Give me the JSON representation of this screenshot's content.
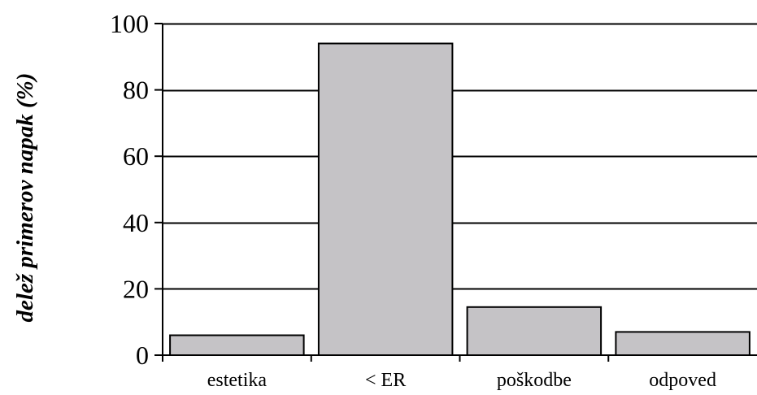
{
  "chart_data": {
    "type": "bar",
    "title": "",
    "xlabel": "",
    "ylabel": "delež primerov napak (%)",
    "categories": [
      "estetika",
      "< ER",
      "poškodbe",
      "odpoved"
    ],
    "series": [
      {
        "values": [
          6,
          94,
          14.5,
          7
        ]
      }
    ],
    "ylim": [
      0,
      100
    ],
    "yticks": [
      0,
      20,
      40,
      60,
      80,
      100
    ],
    "grid": true,
    "legend": "none",
    "colors": {
      "bar_fill": "#c5c3c6",
      "bar_stroke": "#000000",
      "grid": "#000000",
      "axis": "#000000"
    }
  }
}
